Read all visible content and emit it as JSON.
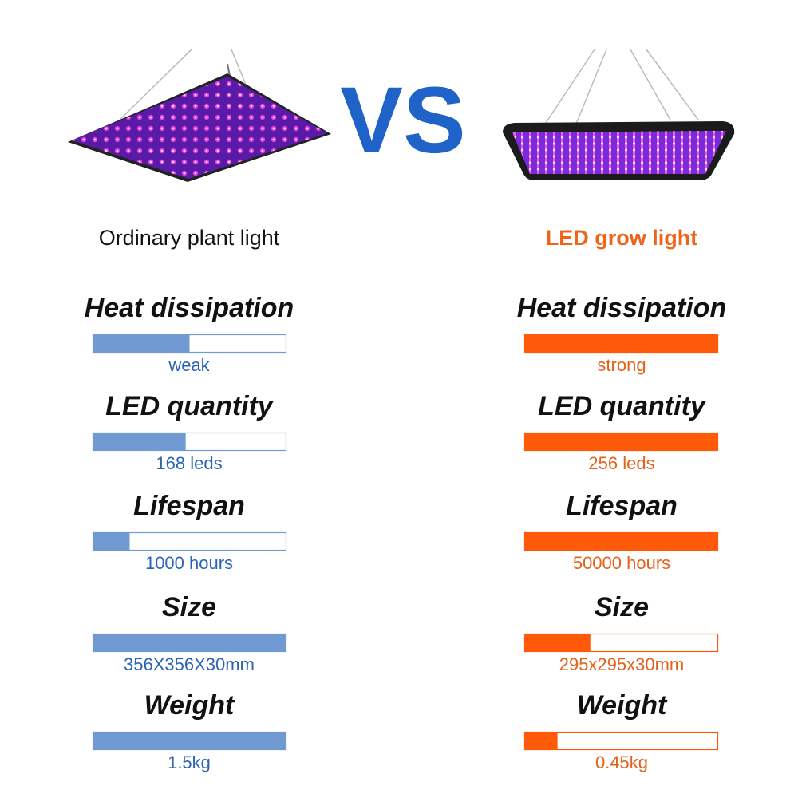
{
  "header": {
    "vs": "VS"
  },
  "columns": [
    {
      "title": "Ordinary plant light",
      "color": "#7199d2",
      "text_color": "#2b64b4",
      "title_color": "#111111",
      "rows": [
        {
          "label": "Heat dissipation",
          "value": "weak",
          "level": 50
        },
        {
          "label": "LED quantity",
          "value": "168 leds",
          "level": 48
        },
        {
          "label": "Lifespan",
          "value": "1000 hours",
          "level": 19
        },
        {
          "label": "Size",
          "value": "356X356X30mm",
          "level": 100
        },
        {
          "label": "Weight",
          "value": "1.5kg",
          "level": 100
        }
      ]
    },
    {
      "title": "LED grow light",
      "color": "#ff5a0a",
      "text_color": "#e4611a",
      "title_color": "#f0641a",
      "rows": [
        {
          "label": "Heat dissipation",
          "value": "strong",
          "level": 100
        },
        {
          "label": "LED quantity",
          "value": "256 leds",
          "level": 100
        },
        {
          "label": "Lifespan",
          "value": "50000 hours",
          "level": 100
        },
        {
          "label": "Size",
          "value": "295x295x30mm",
          "level": 34
        },
        {
          "label": "Weight",
          "value": "0.45kg",
          "level": 17
        }
      ]
    }
  ]
}
